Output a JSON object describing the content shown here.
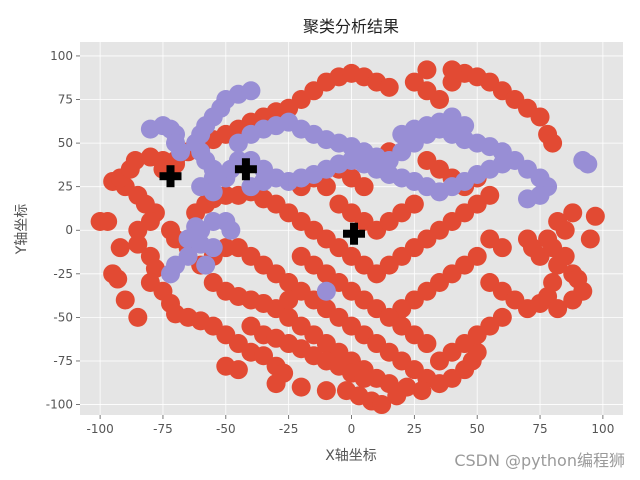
{
  "chart_data": {
    "type": "scatter",
    "title": "聚类分析结果",
    "xlabel": "X轴坐标",
    "ylabel": "Y轴坐标",
    "xlim": [
      -108,
      108
    ],
    "ylim": [
      -106,
      108
    ],
    "xticks": [
      -100,
      -75,
      -50,
      -25,
      0,
      25,
      50,
      75,
      100
    ],
    "yticks": [
      -100,
      -75,
      -50,
      -25,
      0,
      25,
      50,
      75,
      100
    ],
    "grid": true,
    "colors": {
      "background": "#e5e5e5",
      "grid": "#ffffff",
      "cluster_red": "#e24a33",
      "cluster_purple": "#988ed5",
      "centroid": "#000000"
    },
    "series": [
      {
        "color": "#e24a33",
        "points": [
          [
            -100,
            5
          ],
          [
            -97,
            5
          ],
          [
            -95,
            -25
          ],
          [
            -93,
            -28
          ],
          [
            -90,
            -40
          ],
          [
            -95,
            28
          ],
          [
            -90,
            25
          ],
          [
            -92,
            30
          ],
          [
            -88,
            35
          ],
          [
            -86,
            40
          ],
          [
            -80,
            42
          ],
          [
            -75,
            40
          ],
          [
            -70,
            38
          ],
          [
            -85,
            20
          ],
          [
            -82,
            15
          ],
          [
            -78,
            10
          ],
          [
            -80,
            5
          ],
          [
            -85,
            0
          ],
          [
            -85,
            -8
          ],
          [
            -80,
            -15
          ],
          [
            -78,
            -22
          ],
          [
            -80,
            -30
          ],
          [
            -75,
            -35
          ],
          [
            -72,
            -42
          ],
          [
            -70,
            -48
          ],
          [
            -65,
            -50
          ],
          [
            -60,
            -52
          ],
          [
            -55,
            -55
          ],
          [
            -50,
            -60
          ],
          [
            -45,
            -65
          ],
          [
            -40,
            -70
          ],
          [
            -35,
            -72
          ],
          [
            -30,
            -78
          ],
          [
            -27,
            -82
          ],
          [
            -62,
            10
          ],
          [
            -58,
            15
          ],
          [
            -55,
            18
          ],
          [
            -50,
            20
          ],
          [
            -45,
            20
          ],
          [
            -40,
            22
          ],
          [
            -35,
            18
          ],
          [
            -30,
            15
          ],
          [
            -25,
            10
          ],
          [
            -20,
            5
          ],
          [
            -15,
            0
          ],
          [
            -10,
            -5
          ],
          [
            -5,
            -10
          ],
          [
            0,
            -15
          ],
          [
            5,
            -20
          ],
          [
            10,
            -25
          ],
          [
            15,
            -20
          ],
          [
            20,
            -15
          ],
          [
            25,
            -10
          ],
          [
            30,
            -5
          ],
          [
            35,
            0
          ],
          [
            40,
            5
          ],
          [
            45,
            10
          ],
          [
            50,
            15
          ],
          [
            55,
            20
          ],
          [
            -45,
            -10
          ],
          [
            -40,
            -15
          ],
          [
            -35,
            -20
          ],
          [
            -30,
            -25
          ],
          [
            -25,
            -30
          ],
          [
            -20,
            -35
          ],
          [
            -15,
            -40
          ],
          [
            -10,
            -45
          ],
          [
            -5,
            -50
          ],
          [
            0,
            -55
          ],
          [
            5,
            -60
          ],
          [
            10,
            -65
          ],
          [
            15,
            -70
          ],
          [
            20,
            -75
          ],
          [
            25,
            -80
          ],
          [
            30,
            -85
          ],
          [
            35,
            -88
          ],
          [
            40,
            -85
          ],
          [
            45,
            -80
          ],
          [
            48,
            -75
          ],
          [
            50,
            -70
          ],
          [
            -20,
            25
          ],
          [
            -15,
            30
          ],
          [
            -10,
            25
          ],
          [
            -5,
            15
          ],
          [
            0,
            10
          ],
          [
            5,
            5
          ],
          [
            10,
            0
          ],
          [
            15,
            5
          ],
          [
            20,
            10
          ],
          [
            25,
            15
          ],
          [
            -30,
            -45
          ],
          [
            -25,
            -50
          ],
          [
            -20,
            -55
          ],
          [
            -15,
            -60
          ],
          [
            -10,
            -65
          ],
          [
            -5,
            -70
          ],
          [
            0,
            -75
          ],
          [
            5,
            -80
          ],
          [
            10,
            -85
          ],
          [
            15,
            -88
          ],
          [
            -2,
            -92
          ],
          [
            3,
            -95
          ],
          [
            8,
            -98
          ],
          [
            12,
            -100
          ],
          [
            18,
            -95
          ],
          [
            22,
            -90
          ],
          [
            28,
            -92
          ],
          [
            35,
            -75
          ],
          [
            40,
            -70
          ],
          [
            45,
            -65
          ],
          [
            55,
            -30
          ],
          [
            60,
            -35
          ],
          [
            65,
            -40
          ],
          [
            70,
            -45
          ],
          [
            75,
            -42
          ],
          [
            78,
            -38
          ],
          [
            80,
            -30
          ],
          [
            82,
            -20
          ],
          [
            85,
            -15
          ],
          [
            88,
            -25
          ],
          [
            90,
            -28
          ],
          [
            92,
            -35
          ],
          [
            88,
            -40
          ],
          [
            82,
            -45
          ],
          [
            70,
            -5
          ],
          [
            72,
            -10
          ],
          [
            75,
            -15
          ],
          [
            78,
            -5
          ],
          [
            82,
            5
          ],
          [
            85,
            0
          ],
          [
            80,
            -10
          ],
          [
            60,
            -10
          ],
          [
            55,
            -5
          ],
          [
            50,
            -15
          ],
          [
            45,
            -20
          ],
          [
            40,
            -25
          ],
          [
            35,
            -30
          ],
          [
            30,
            -35
          ],
          [
            25,
            -40
          ],
          [
            20,
            -45
          ],
          [
            -20,
            75
          ],
          [
            -15,
            80
          ],
          [
            -10,
            85
          ],
          [
            -5,
            88
          ],
          [
            0,
            90
          ],
          [
            5,
            88
          ],
          [
            10,
            85
          ],
          [
            15,
            82
          ],
          [
            -25,
            70
          ],
          [
            -30,
            68
          ],
          [
            -35,
            65
          ],
          [
            -40,
            62
          ],
          [
            -45,
            58
          ],
          [
            -50,
            55
          ],
          [
            -55,
            52
          ],
          [
            -60,
            48
          ],
          [
            -65,
            45
          ],
          [
            -70,
            40
          ],
          [
            -75,
            35
          ],
          [
            -55,
            -30
          ],
          [
            -50,
            -35
          ],
          [
            -45,
            -38
          ],
          [
            -40,
            -40
          ],
          [
            -35,
            -42
          ],
          [
            -60,
            -20
          ],
          [
            -55,
            -15
          ],
          [
            -50,
            -10
          ],
          [
            -65,
            -10
          ],
          [
            -70,
            -5
          ],
          [
            -72,
            0
          ],
          [
            10,
            40
          ],
          [
            15,
            45
          ],
          [
            25,
            85
          ],
          [
            30,
            80
          ],
          [
            35,
            75
          ],
          [
            40,
            85
          ],
          [
            45,
            90
          ],
          [
            50,
            88
          ],
          [
            55,
            85
          ],
          [
            60,
            80
          ],
          [
            65,
            75
          ],
          [
            70,
            70
          ],
          [
            75,
            65
          ],
          [
            78,
            55
          ],
          [
            80,
            50
          ],
          [
            30,
            92
          ],
          [
            40,
            92
          ],
          [
            -40,
            -55
          ],
          [
            -35,
            -60
          ],
          [
            -30,
            -62
          ],
          [
            -25,
            -65
          ],
          [
            -20,
            -68
          ],
          [
            -15,
            -72
          ],
          [
            -10,
            -75
          ],
          [
            -5,
            -78
          ],
          [
            0,
            -82
          ],
          [
            5,
            -85
          ],
          [
            60,
            -50
          ],
          [
            55,
            -55
          ],
          [
            50,
            -60
          ],
          [
            -5,
            35
          ],
          [
            0,
            30
          ],
          [
            5,
            25
          ],
          [
            -20,
            -15
          ],
          [
            -15,
            -20
          ],
          [
            -10,
            -25
          ],
          [
            -5,
            -30
          ],
          [
            0,
            -35
          ],
          [
            5,
            -40
          ],
          [
            10,
            -45
          ],
          [
            15,
            -50
          ],
          [
            20,
            -55
          ],
          [
            25,
            -60
          ],
          [
            30,
            -65
          ],
          [
            -25,
            -40
          ],
          [
            30,
            40
          ],
          [
            35,
            35
          ],
          [
            40,
            30
          ],
          [
            45,
            25
          ],
          [
            50,
            30
          ],
          [
            95,
            -5
          ],
          [
            97,
            8
          ],
          [
            88,
            10
          ],
          [
            -92,
            -10
          ],
          [
            -85,
            -50
          ],
          [
            -50,
            -78
          ],
          [
            -45,
            -80
          ],
          [
            -30,
            -88
          ],
          [
            -20,
            -90
          ],
          [
            -10,
            -92
          ]
        ]
      },
      {
        "color": "#988ed5",
        "points": [
          [
            -80,
            58
          ],
          [
            -75,
            60
          ],
          [
            -72,
            58
          ],
          [
            -70,
            55
          ],
          [
            -70,
            50
          ],
          [
            -68,
            45
          ],
          [
            -55,
            35
          ],
          [
            -58,
            40
          ],
          [
            -60,
            45
          ],
          [
            -62,
            50
          ],
          [
            -60,
            55
          ],
          [
            -58,
            60
          ],
          [
            -55,
            65
          ],
          [
            -52,
            70
          ],
          [
            -50,
            75
          ],
          [
            -45,
            78
          ],
          [
            -40,
            80
          ],
          [
            -55,
            30
          ],
          [
            -60,
            25
          ],
          [
            -55,
            22
          ],
          [
            -50,
            30
          ],
          [
            -48,
            35
          ],
          [
            -45,
            40
          ],
          [
            -45,
            50
          ],
          [
            -40,
            55
          ],
          [
            -35,
            58
          ],
          [
            -30,
            60
          ],
          [
            -25,
            62
          ],
          [
            -20,
            58
          ],
          [
            -15,
            55
          ],
          [
            -10,
            52
          ],
          [
            -5,
            50
          ],
          [
            0,
            48
          ],
          [
            5,
            45
          ],
          [
            10,
            42
          ],
          [
            15,
            40
          ],
          [
            20,
            45
          ],
          [
            25,
            50
          ],
          [
            30,
            55
          ],
          [
            35,
            58
          ],
          [
            40,
            55
          ],
          [
            45,
            52
          ],
          [
            50,
            50
          ],
          [
            55,
            48
          ],
          [
            60,
            45
          ],
          [
            65,
            40
          ],
          [
            70,
            35
          ],
          [
            75,
            30
          ],
          [
            78,
            25
          ],
          [
            75,
            20
          ],
          [
            70,
            18
          ],
          [
            -40,
            40
          ],
          [
            -35,
            35
          ],
          [
            -30,
            30
          ],
          [
            -25,
            28
          ],
          [
            -20,
            30
          ],
          [
            -15,
            32
          ],
          [
            -10,
            35
          ],
          [
            -5,
            38
          ],
          [
            0,
            40
          ],
          [
            5,
            38
          ],
          [
            10,
            35
          ],
          [
            15,
            32
          ],
          [
            20,
            30
          ],
          [
            25,
            28
          ],
          [
            30,
            25
          ],
          [
            35,
            22
          ],
          [
            40,
            25
          ],
          [
            45,
            28
          ],
          [
            50,
            32
          ],
          [
            55,
            35
          ],
          [
            60,
            38
          ],
          [
            -40,
            25
          ],
          [
            -35,
            28
          ],
          [
            30,
            60
          ],
          [
            35,
            62
          ],
          [
            40,
            65
          ],
          [
            45,
            60
          ],
          [
            25,
            58
          ],
          [
            20,
            55
          ],
          [
            -65,
            -5
          ],
          [
            -60,
            -8
          ],
          [
            -55,
            -10
          ],
          [
            -60,
            0
          ],
          [
            -65,
            -15
          ],
          [
            -58,
            -20
          ],
          [
            -70,
            -20
          ],
          [
            -72,
            -25
          ],
          [
            -62,
            2
          ],
          [
            -55,
            5
          ],
          [
            -50,
            5
          ],
          [
            -48,
            0
          ],
          [
            -10,
            -35
          ],
          [
            92,
            40
          ],
          [
            94,
            38
          ]
        ]
      }
    ],
    "centroids": [
      [
        -72,
        31
      ],
      [
        -42,
        35
      ],
      [
        1,
        -2
      ]
    ]
  }
}
